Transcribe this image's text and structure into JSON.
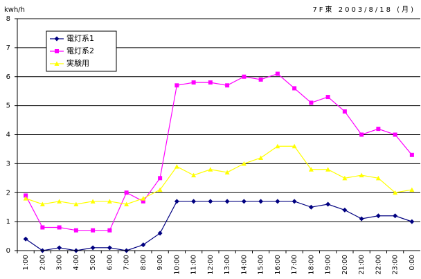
{
  "chart_data": {
    "type": "line",
    "ylabel": "kwh/h",
    "title": "7F東 2003/8/18 (月)",
    "categories": [
      "1:00",
      "2:00",
      "3:00",
      "4:00",
      "5:00",
      "6:00",
      "7:00",
      "8:00",
      "9:00",
      "10:00",
      "11:00",
      "12:00",
      "13:00",
      "14:00",
      "15:00",
      "16:00",
      "17:00",
      "18:00",
      "19:00",
      "20:00",
      "21:00",
      "22:00",
      "23:00",
      "0:00"
    ],
    "series": [
      {
        "name": "電灯系1",
        "color": "#000080",
        "marker": "diamond",
        "values": [
          0.4,
          0,
          0.1,
          0,
          0.1,
          0.1,
          0,
          0.2,
          0.6,
          1.7,
          1.7,
          1.7,
          1.7,
          1.7,
          1.7,
          1.7,
          1.7,
          1.5,
          1.6,
          1.4,
          1.1,
          1.2,
          1.2,
          1.0
        ]
      },
      {
        "name": "電灯系2",
        "color": "#ff00ff",
        "marker": "square",
        "values": [
          1.9,
          0.8,
          0.8,
          0.7,
          0.7,
          0.7,
          2.0,
          1.7,
          2.5,
          5.7,
          5.8,
          5.8,
          5.7,
          6.0,
          5.9,
          6.1,
          5.6,
          5.1,
          5.3,
          4.8,
          4.0,
          4.2,
          4.0,
          3.3
        ]
      },
      {
        "name": "実験用",
        "color": "#ffff00",
        "marker": "triangle",
        "values": [
          1.8,
          1.6,
          1.7,
          1.6,
          1.7,
          1.7,
          1.6,
          1.8,
          2.1,
          2.9,
          2.6,
          2.8,
          2.7,
          3.0,
          3.2,
          3.6,
          3.6,
          2.8,
          2.8,
          2.5,
          2.6,
          2.5,
          2.0,
          2.1
        ]
      }
    ],
    "ylim": [
      0,
      8
    ],
    "yticks": [
      0,
      1,
      2,
      3,
      4,
      5,
      6,
      7,
      8
    ],
    "grid": true,
    "legend": "upper-left"
  }
}
